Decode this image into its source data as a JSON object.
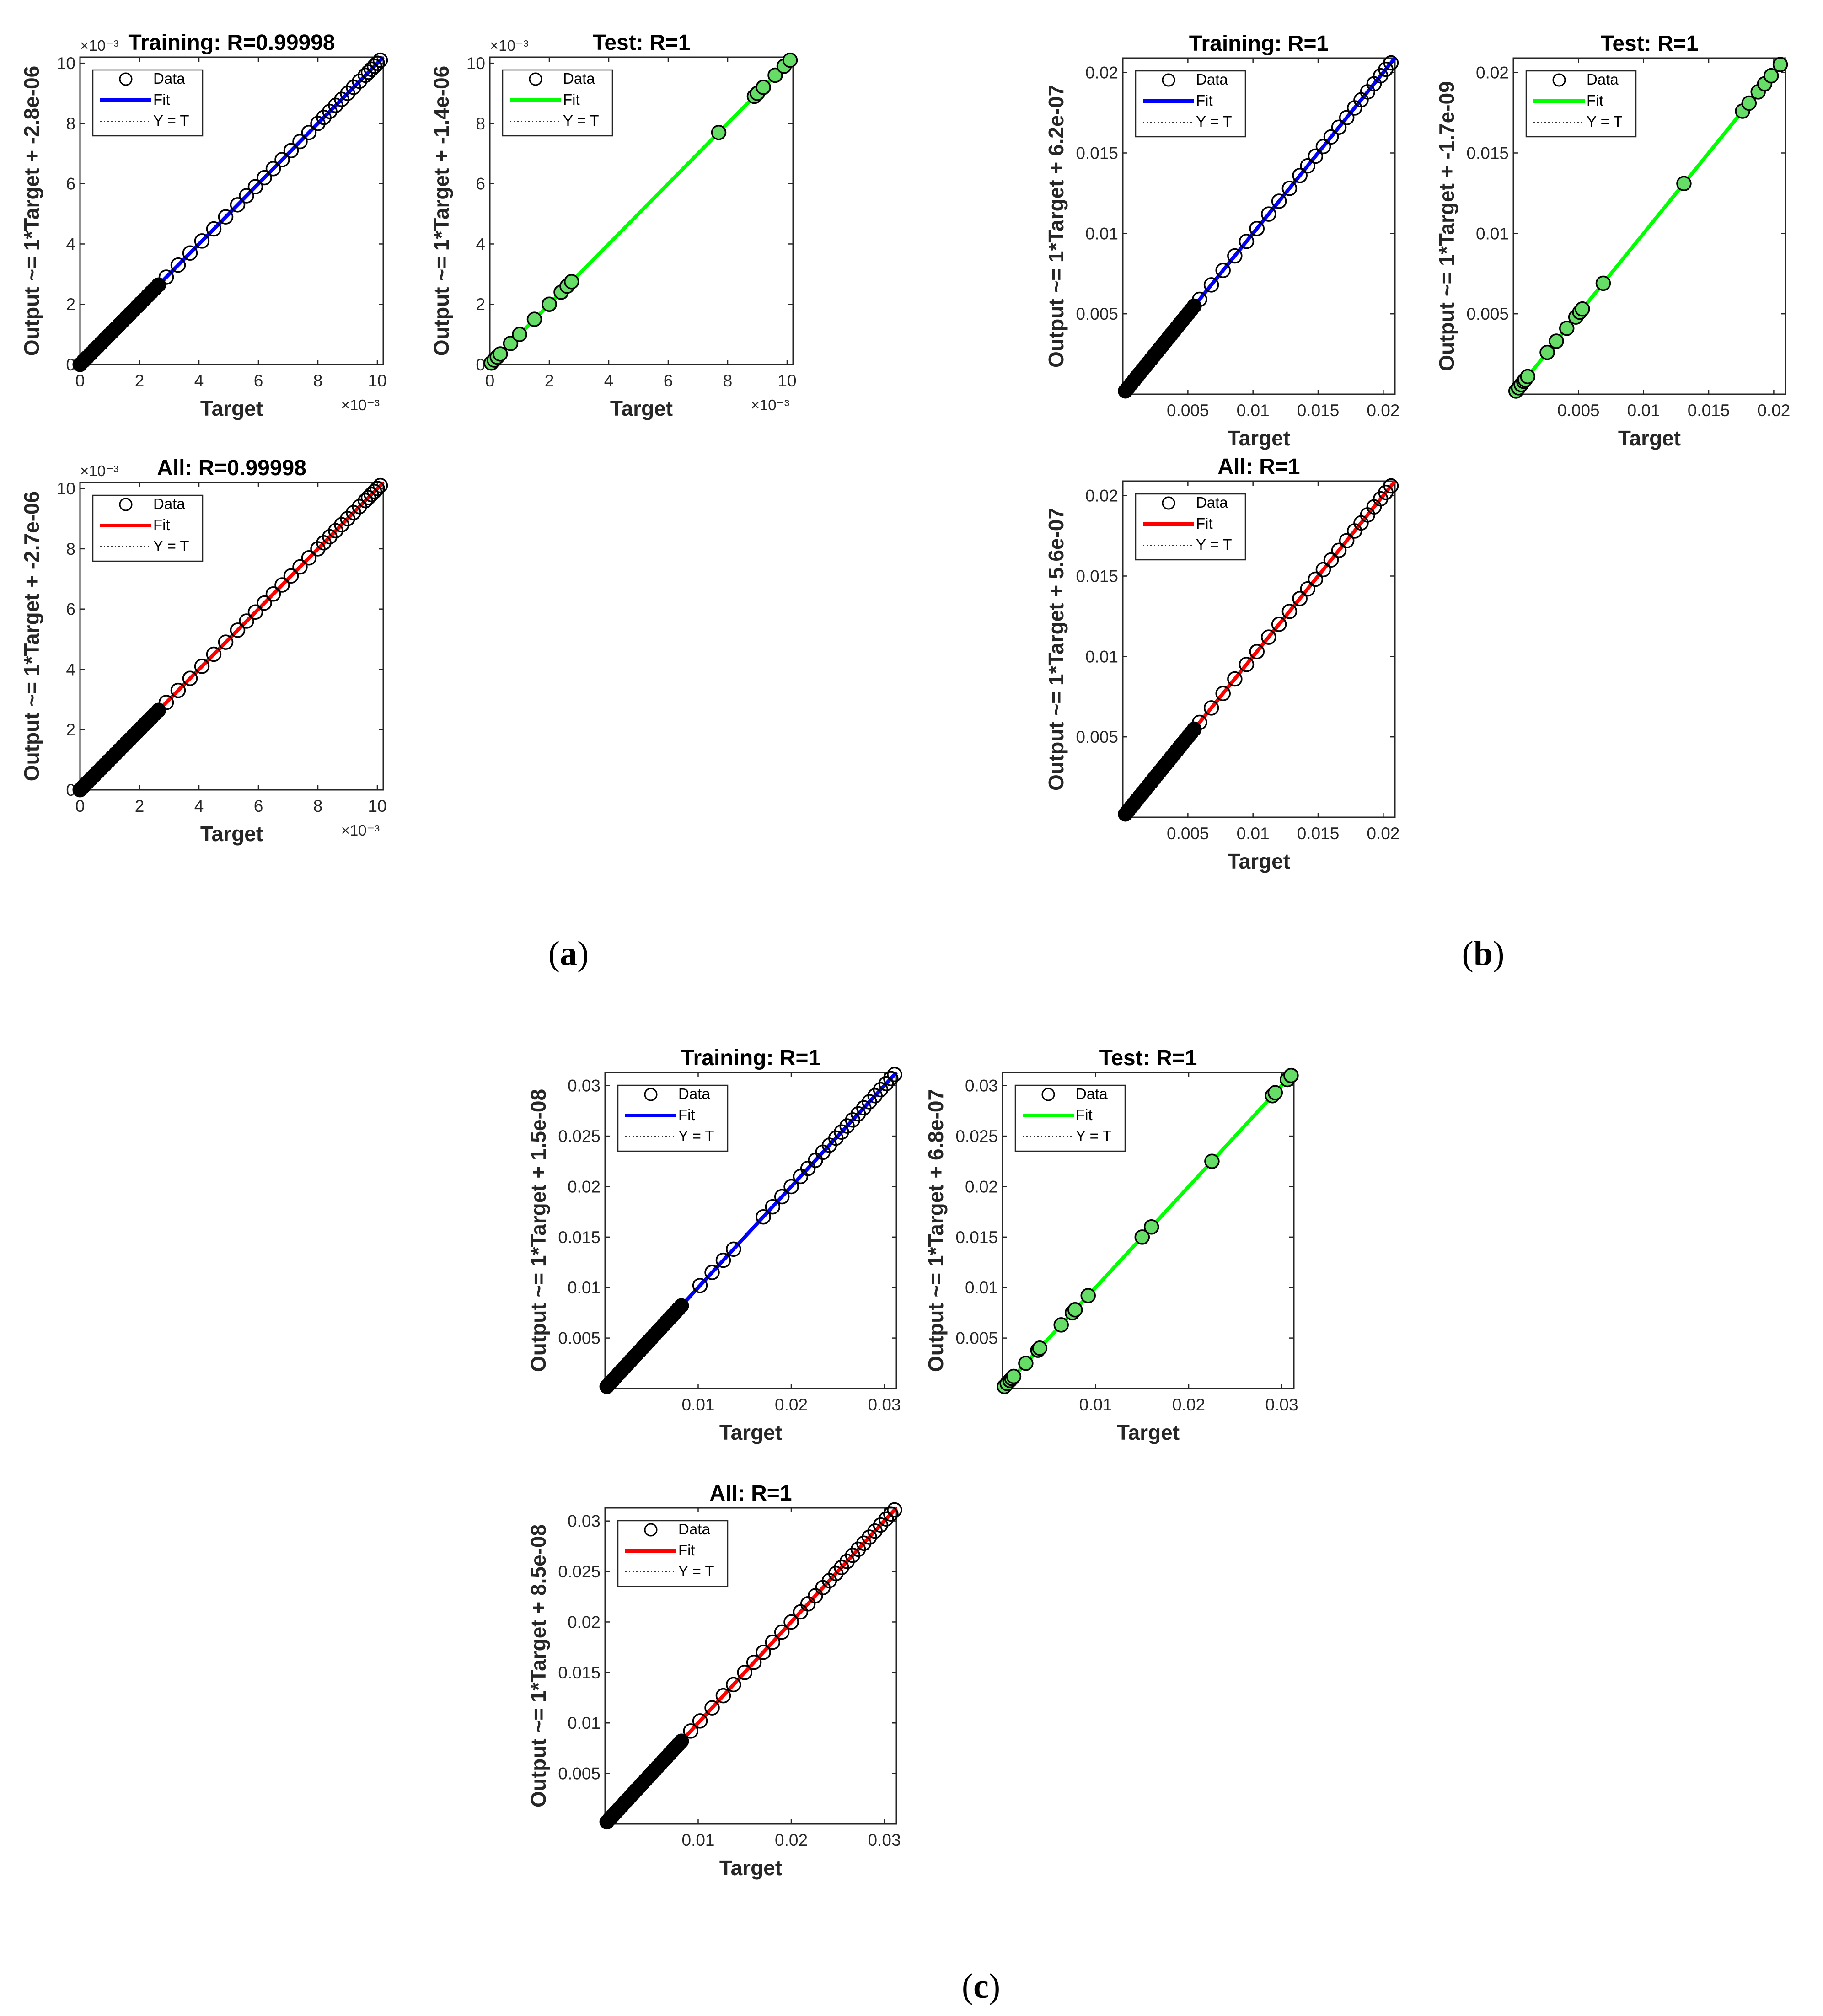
{
  "panel_labels": {
    "a": "a",
    "b": "b",
    "c": "c"
  },
  "legend": {
    "data": "Data",
    "fit": "Fit",
    "yt": "Y = T"
  },
  "colors": {
    "training": "#0000ff",
    "test": "#00ff00",
    "all": "#ff0000",
    "points": "#000000",
    "test_fill": "#66dd66"
  },
  "chart_data": [
    {
      "panel": "a",
      "subplot": "training",
      "type": "scatter",
      "title": "Training: R=0.99998",
      "xlabel": "Target",
      "ylabel": "Output ~= 1*Target + -2.8e-06",
      "xlim": [
        0,
        10.2
      ],
      "ylim": [
        0,
        10.2
      ],
      "xticks": [
        0,
        2,
        4,
        6,
        8,
        10
      ],
      "yticks": [
        0,
        2,
        4,
        6,
        8,
        10
      ],
      "xticklabels": [
        "0",
        "2",
        "4",
        "6",
        "8",
        "10"
      ],
      "yticklabels": [
        "0",
        "2",
        "4",
        "6",
        "8",
        "10"
      ],
      "x_exponent": "×10⁻³",
      "y_exponent": "×10⁻³",
      "fit": {
        "slope": 1,
        "intercept": -0.0028
      },
      "dense_range": [
        0,
        2.7
      ],
      "dense_step": 0.12,
      "tail_points": [
        2.9,
        3.3,
        3.7,
        4.1,
        4.5,
        4.9,
        5.3,
        5.6,
        5.9,
        6.2,
        6.5,
        6.8,
        7.1,
        7.4,
        7.7,
        8.0,
        8.2,
        8.4,
        8.6,
        8.8,
        9.0,
        9.2,
        9.4,
        9.6,
        9.7,
        9.8,
        9.9,
        10.0,
        10.1
      ]
    },
    {
      "panel": "a",
      "subplot": "test",
      "type": "scatter",
      "title": "Test: R=1",
      "xlabel": "Target",
      "ylabel": "Output ~= 1*Target + -1.4e-06",
      "xlim": [
        0,
        10.2
      ],
      "ylim": [
        0,
        10.2
      ],
      "xticks": [
        0,
        2,
        4,
        6,
        8,
        10
      ],
      "yticks": [
        0,
        2,
        4,
        6,
        8,
        10
      ],
      "xticklabels": [
        "0",
        "2",
        "4",
        "6",
        "8",
        "10"
      ],
      "yticklabels": [
        "0",
        "2",
        "4",
        "6",
        "8",
        "10"
      ],
      "x_exponent": "×10⁻³",
      "y_exponent": "×10⁻³",
      "fit": {
        "slope": 1,
        "intercept": -0.0014
      },
      "points": [
        0.05,
        0.15,
        0.25,
        0.35,
        0.7,
        1.0,
        1.5,
        2.0,
        2.4,
        2.6,
        2.75,
        7.7,
        8.9,
        9.0,
        9.2,
        9.6,
        9.9,
        10.1
      ]
    },
    {
      "panel": "a",
      "subplot": "all",
      "type": "scatter",
      "title": "All: R=0.99998",
      "xlabel": "Target",
      "ylabel": "Output ~= 1*Target + -2.7e-06",
      "xlim": [
        0,
        10.2
      ],
      "ylim": [
        0,
        10.2
      ],
      "xticks": [
        0,
        2,
        4,
        6,
        8,
        10
      ],
      "yticks": [
        0,
        2,
        4,
        6,
        8,
        10
      ],
      "xticklabels": [
        "0",
        "2",
        "4",
        "6",
        "8",
        "10"
      ],
      "yticklabels": [
        "0",
        "2",
        "4",
        "6",
        "8",
        "10"
      ],
      "x_exponent": "×10⁻³",
      "y_exponent": "×10⁻³",
      "fit": {
        "slope": 1,
        "intercept": -0.0027
      },
      "dense_range": [
        0,
        2.7
      ],
      "dense_step": 0.12,
      "tail_points": [
        2.9,
        3.3,
        3.7,
        4.1,
        4.5,
        4.9,
        5.3,
        5.6,
        5.9,
        6.2,
        6.5,
        6.8,
        7.1,
        7.4,
        7.7,
        8.0,
        8.2,
        8.4,
        8.6,
        8.8,
        9.0,
        9.2,
        9.4,
        9.6,
        9.7,
        9.8,
        9.9,
        10.0,
        10.1
      ]
    },
    {
      "panel": "b",
      "subplot": "training",
      "type": "scatter",
      "title": "Training: R=1",
      "xlabel": "Target",
      "ylabel": "Output ~= 1*Target + 6.2e-07",
      "xlim": [
        0,
        0.0209
      ],
      "ylim": [
        0,
        0.0209
      ],
      "xticks": [
        0.005,
        0.01,
        0.015,
        0.02
      ],
      "yticks": [
        0.005,
        0.01,
        0.015,
        0.02
      ],
      "xticklabels": [
        "0.005",
        "0.01",
        "0.015",
        "0.02"
      ],
      "yticklabels": [
        "0.005",
        "0.01",
        "0.015",
        "0.02"
      ],
      "fit": {
        "slope": 1,
        "intercept": 6.2e-07
      },
      "dense_range": [
        0.0002,
        0.0055
      ],
      "dense_step": 0.00022,
      "tail_points": [
        0.0059,
        0.0068,
        0.0077,
        0.0086,
        0.0095,
        0.0103,
        0.0112,
        0.012,
        0.0128,
        0.0136,
        0.0142,
        0.0148,
        0.0154,
        0.016,
        0.0166,
        0.0172,
        0.0178,
        0.0183,
        0.0188,
        0.0193,
        0.0198,
        0.0202,
        0.0206
      ]
    },
    {
      "panel": "b",
      "subplot": "test",
      "type": "scatter",
      "title": "Test: R=1",
      "xlabel": "Target",
      "ylabel": "Output ~= 1*Target + -1.7e-09",
      "xlim": [
        0,
        0.0209
      ],
      "ylim": [
        0,
        0.0209
      ],
      "xticks": [
        0.005,
        0.01,
        0.015,
        0.02
      ],
      "yticks": [
        0.005,
        0.01,
        0.015,
        0.02
      ],
      "xticklabels": [
        "0.005",
        "0.01",
        "0.015",
        "0.02"
      ],
      "yticklabels": [
        "0.005",
        "0.01",
        "0.015",
        "0.02"
      ],
      "fit": {
        "slope": 1,
        "intercept": -1.7e-09
      },
      "points": [
        0.0002,
        0.0004,
        0.0006,
        0.0008,
        0.0009,
        0.0011,
        0.0026,
        0.0033,
        0.0041,
        0.0048,
        0.0051,
        0.0053,
        0.0069,
        0.0131,
        0.0176,
        0.0181,
        0.0188,
        0.0193,
        0.0198,
        0.0205
      ]
    },
    {
      "panel": "b",
      "subplot": "all",
      "type": "scatter",
      "title": "All: R=1",
      "xlabel": "Target",
      "ylabel": "Output ~= 1*Target + 5.6e-07",
      "xlim": [
        0,
        0.0209
      ],
      "ylim": [
        0,
        0.0209
      ],
      "xticks": [
        0.005,
        0.01,
        0.015,
        0.02
      ],
      "yticks": [
        0.005,
        0.01,
        0.015,
        0.02
      ],
      "xticklabels": [
        "0.005",
        "0.01",
        "0.015",
        "0.02"
      ],
      "yticklabels": [
        "0.005",
        "0.01",
        "0.015",
        "0.02"
      ],
      "fit": {
        "slope": 1,
        "intercept": 5.6e-07
      },
      "dense_range": [
        0.0002,
        0.0055
      ],
      "dense_step": 0.00022,
      "tail_points": [
        0.0059,
        0.0068,
        0.0077,
        0.0086,
        0.0095,
        0.0103,
        0.0112,
        0.012,
        0.0128,
        0.0136,
        0.0142,
        0.0148,
        0.0154,
        0.016,
        0.0166,
        0.0172,
        0.0178,
        0.0183,
        0.0188,
        0.0193,
        0.0198,
        0.0202,
        0.0206
      ]
    },
    {
      "panel": "c",
      "subplot": "training",
      "type": "scatter",
      "title": "Training: R=1",
      "xlabel": "Target",
      "ylabel": "Output ~= 1*Target + 1.5e-08",
      "xlim": [
        0,
        0.0313
      ],
      "ylim": [
        0,
        0.0313
      ],
      "xticks": [
        0.01,
        0.02,
        0.03
      ],
      "yticks": [
        0.005,
        0.01,
        0.015,
        0.02,
        0.025,
        0.03
      ],
      "xticklabels": [
        "0.01",
        "0.02",
        "0.03"
      ],
      "yticklabels": [
        "0.005",
        "0.01",
        "0.015",
        "0.02",
        "0.025",
        "0.03"
      ],
      "fit": {
        "slope": 1,
        "intercept": 1.5e-08
      },
      "dense_range": [
        0.0002,
        0.0083
      ],
      "dense_step": 0.00032,
      "tail_points": [
        0.0102,
        0.0115,
        0.0127,
        0.0138,
        0.017,
        0.018,
        0.019,
        0.02,
        0.021,
        0.0218,
        0.0226,
        0.0234,
        0.0241,
        0.0248,
        0.0254,
        0.026,
        0.0266,
        0.0272,
        0.0278,
        0.0284,
        0.029,
        0.0296,
        0.0302,
        0.0307,
        0.0311
      ]
    },
    {
      "panel": "c",
      "subplot": "test",
      "type": "scatter",
      "title": "Test: R=1",
      "xlabel": "Target",
      "ylabel": "Output ~= 1*Target + 6.8e-07",
      "xlim": [
        0,
        0.0313
      ],
      "ylim": [
        0,
        0.0313
      ],
      "xticks": [
        0.01,
        0.02,
        0.03
      ],
      "yticks": [
        0.005,
        0.01,
        0.015,
        0.02,
        0.025,
        0.03
      ],
      "xticklabels": [
        "0.01",
        "0.02",
        "0.03"
      ],
      "yticklabels": [
        "0.005",
        "0.01",
        "0.015",
        "0.02",
        "0.025",
        "0.03"
      ],
      "fit": {
        "slope": 1,
        "intercept": 6.8e-07
      },
      "points": [
        0.0002,
        0.0005,
        0.0008,
        0.001,
        0.0012,
        0.0025,
        0.0038,
        0.004,
        0.0063,
        0.0075,
        0.0078,
        0.0092,
        0.015,
        0.016,
        0.0225,
        0.029,
        0.0293,
        0.0306,
        0.031
      ]
    },
    {
      "panel": "c",
      "subplot": "all",
      "type": "scatter",
      "title": "All: R=1",
      "xlabel": "Target",
      "ylabel": "Output ~= 1*Target + 8.5e-08",
      "xlim": [
        0,
        0.0313
      ],
      "ylim": [
        0,
        0.0313
      ],
      "xticks": [
        0.01,
        0.02,
        0.03
      ],
      "yticks": [
        0.005,
        0.01,
        0.015,
        0.02,
        0.025,
        0.03
      ],
      "xticklabels": [
        "0.01",
        "0.02",
        "0.03"
      ],
      "yticklabels": [
        "0.005",
        "0.01",
        "0.015",
        "0.02",
        "0.025",
        "0.03"
      ],
      "fit": {
        "slope": 1,
        "intercept": 8.5e-08
      },
      "dense_range": [
        0.0002,
        0.0083
      ],
      "dense_step": 0.00032,
      "tail_points": [
        0.0092,
        0.0102,
        0.0115,
        0.0127,
        0.0138,
        0.015,
        0.016,
        0.017,
        0.018,
        0.019,
        0.02,
        0.021,
        0.0218,
        0.0226,
        0.0234,
        0.0241,
        0.0248,
        0.0254,
        0.026,
        0.0266,
        0.0272,
        0.0278,
        0.0284,
        0.029,
        0.0296,
        0.0302,
        0.0307,
        0.0311
      ]
    }
  ]
}
